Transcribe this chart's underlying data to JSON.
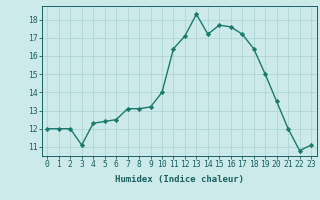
{
  "x": [
    0,
    1,
    2,
    3,
    4,
    5,
    6,
    7,
    8,
    9,
    10,
    11,
    12,
    13,
    14,
    15,
    16,
    17,
    18,
    19,
    20,
    21,
    22,
    23
  ],
  "y": [
    12.0,
    12.0,
    12.0,
    11.1,
    12.3,
    12.4,
    12.5,
    13.1,
    13.1,
    13.2,
    14.0,
    16.4,
    17.1,
    18.3,
    17.2,
    17.7,
    17.6,
    17.2,
    16.4,
    15.0,
    13.5,
    12.0,
    10.8,
    11.1
  ],
  "line_color": "#1a7a6a",
  "marker": "D",
  "markersize": 2.2,
  "linewidth": 1.0,
  "bg_color": "#cdeaea",
  "grid_color": "#b0d4d4",
  "xlabel": "Humidex (Indice chaleur)",
  "xlim": [
    -0.5,
    23.5
  ],
  "ylim": [
    10.5,
    18.75
  ],
  "yticks": [
    11,
    12,
    13,
    14,
    15,
    16,
    17,
    18
  ],
  "xticks": [
    0,
    1,
    2,
    3,
    4,
    5,
    6,
    7,
    8,
    9,
    10,
    11,
    12,
    13,
    14,
    15,
    16,
    17,
    18,
    19,
    20,
    21,
    22,
    23
  ],
  "tick_color": "#1a6060",
  "label_fontsize": 6.5,
  "tick_fontsize": 5.8
}
